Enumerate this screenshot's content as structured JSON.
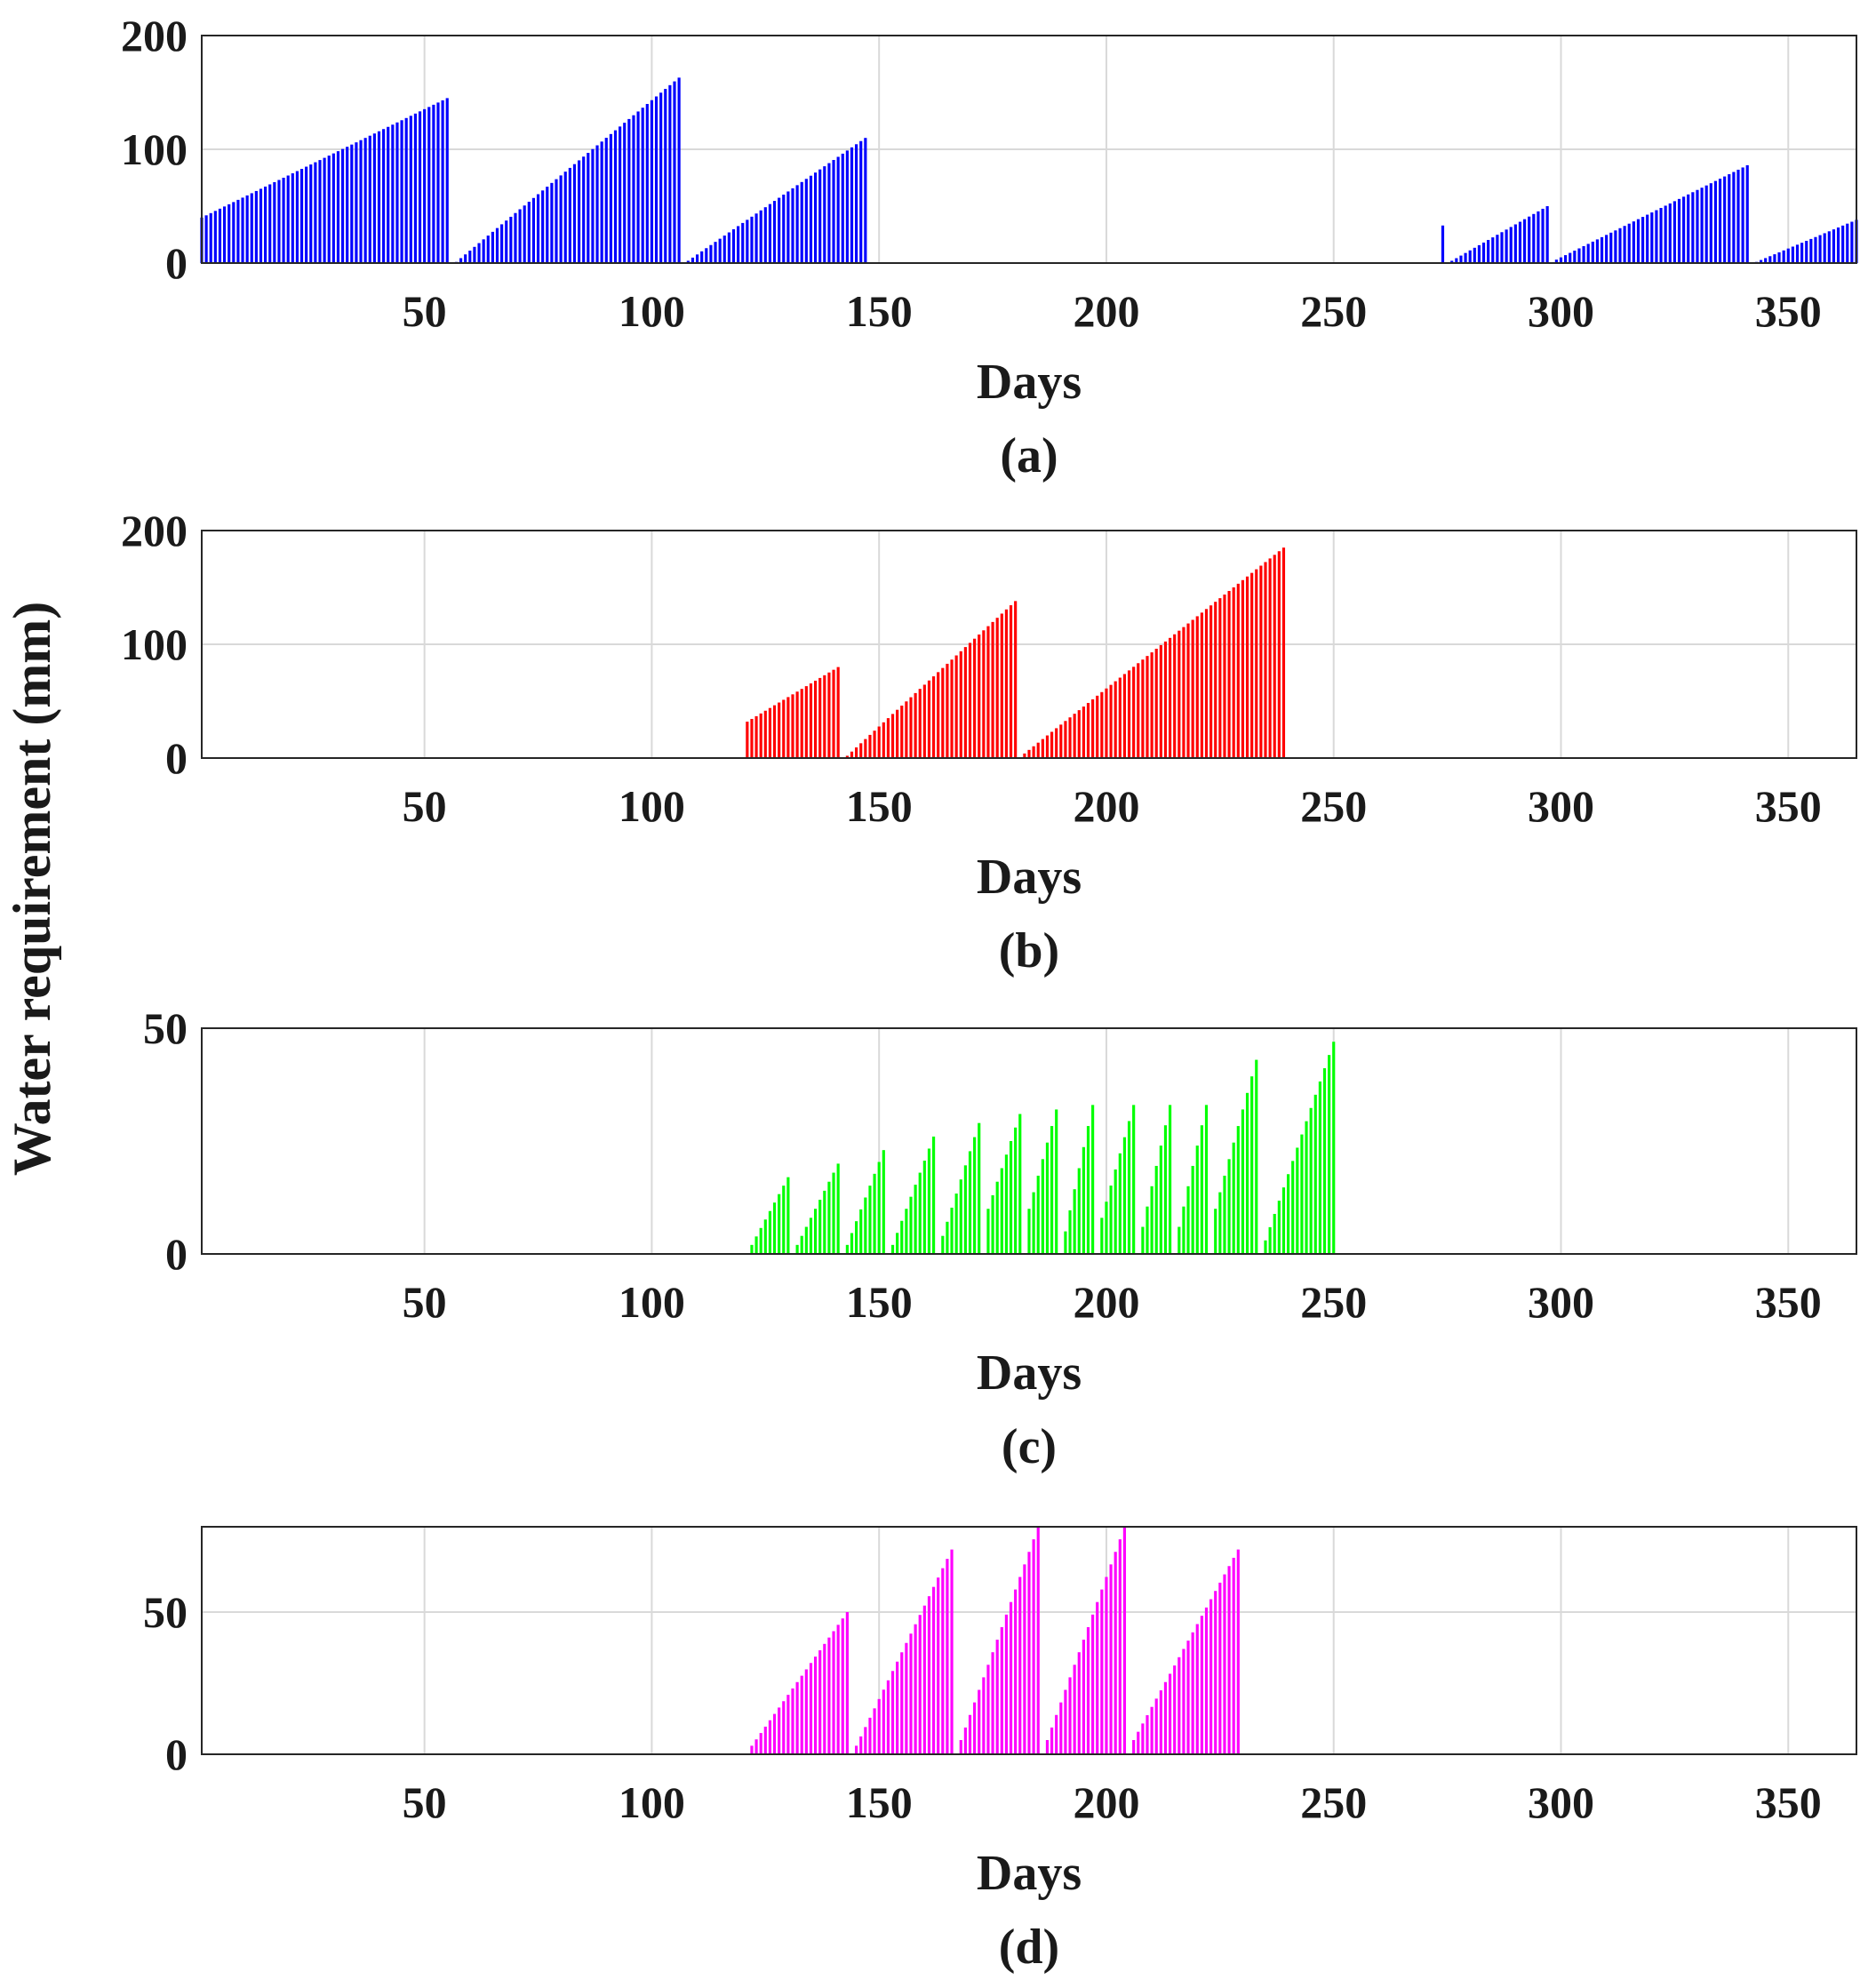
{
  "figure": {
    "shared_ylabel": "Water requirement (mm)",
    "colors": {
      "a": "#0000ff",
      "b": "#ff0000",
      "c": "#00ff00",
      "d": "#ff00ff",
      "grid": "#d9d9d9",
      "axis": "#262626",
      "text": "#1a1a1a"
    }
  },
  "chart_data": [
    {
      "type": "bar",
      "id": "a",
      "panel_label": "(a)",
      "xlabel": "Days",
      "xlim": [
        1,
        365
      ],
      "ylim": [
        0,
        200
      ],
      "xticks": [
        50,
        100,
        150,
        200,
        250,
        300,
        350
      ],
      "xtick_labels": [
        "50",
        "100",
        "150",
        "200",
        "250",
        "300",
        "350"
      ],
      "yticks": [
        0,
        100,
        200
      ],
      "ytick_labels": [
        "0",
        "100",
        "200"
      ],
      "grid": true,
      "color": "#0000ff",
      "segments": [
        {
          "start": 1,
          "end": 55,
          "from": 40,
          "to": 145
        },
        {
          "start": 57,
          "end": 106,
          "from": 1,
          "to": 163
        },
        {
          "start": 108,
          "end": 147,
          "from": 2,
          "to": 110
        },
        {
          "start": 274,
          "end": 274,
          "from": 33,
          "to": 33
        },
        {
          "start": 276,
          "end": 297,
          "from": 2,
          "to": 50
        },
        {
          "start": 299,
          "end": 341,
          "from": 3,
          "to": 86
        },
        {
          "start": 343,
          "end": 365,
          "from": 1,
          "to": 38
        }
      ]
    },
    {
      "type": "bar",
      "id": "b",
      "panel_label": "(b)",
      "xlabel": "Days",
      "xlim": [
        1,
        365
      ],
      "ylim": [
        0,
        200
      ],
      "xticks": [
        50,
        100,
        150,
        200,
        250,
        300,
        350
      ],
      "xtick_labels": [
        "50",
        "100",
        "150",
        "200",
        "250",
        "300",
        "350"
      ],
      "yticks": [
        0,
        100,
        200
      ],
      "ytick_labels": [
        "0",
        "100",
        "200"
      ],
      "grid": true,
      "color": "#ff0000",
      "segments": [
        {
          "start": 121,
          "end": 141,
          "from": 32,
          "to": 80
        },
        {
          "start": 143,
          "end": 180,
          "from": 2,
          "to": 138
        },
        {
          "start": 182,
          "end": 239,
          "from": 4,
          "to": 185
        }
      ]
    },
    {
      "type": "bar",
      "id": "c",
      "panel_label": "(c)",
      "xlabel": "Days",
      "xlim": [
        1,
        365
      ],
      "ylim": [
        0,
        50
      ],
      "xticks": [
        50,
        100,
        150,
        200,
        250,
        300,
        350
      ],
      "xtick_labels": [
        "50",
        "100",
        "150",
        "200",
        "250",
        "300",
        "350"
      ],
      "yticks": [
        0,
        50
      ],
      "ytick_labels": [
        "0",
        "50"
      ],
      "grid": true,
      "color": "#00ff00",
      "segments": [
        {
          "start": 122,
          "end": 130,
          "from": 2,
          "to": 17
        },
        {
          "start": 132,
          "end": 141,
          "from": 2,
          "to": 20
        },
        {
          "start": 143,
          "end": 151,
          "from": 2,
          "to": 23
        },
        {
          "start": 153,
          "end": 162,
          "from": 2,
          "to": 26
        },
        {
          "start": 164,
          "end": 172,
          "from": 4,
          "to": 29
        },
        {
          "start": 174,
          "end": 181,
          "from": 10,
          "to": 31
        },
        {
          "start": 183,
          "end": 189,
          "from": 10,
          "to": 32
        },
        {
          "start": 191,
          "end": 197,
          "from": 5,
          "to": 33
        },
        {
          "start": 199,
          "end": 206,
          "from": 8,
          "to": 33
        },
        {
          "start": 208,
          "end": 214,
          "from": 6,
          "to": 33
        },
        {
          "start": 216,
          "end": 222,
          "from": 6,
          "to": 33
        },
        {
          "start": 224,
          "end": 233,
          "from": 10,
          "to": 43
        },
        {
          "start": 235,
          "end": 250,
          "from": 3,
          "to": 47
        }
      ]
    },
    {
      "type": "bar",
      "id": "d",
      "panel_label": "(d)",
      "xlabel": "Days",
      "xlim": [
        1,
        365
      ],
      "ylim": [
        0,
        80
      ],
      "xticks": [
        50,
        100,
        150,
        200,
        250,
        300,
        350
      ],
      "xtick_labels": [
        "50",
        "100",
        "150",
        "200",
        "250",
        "300",
        "350"
      ],
      "yticks": [
        0,
        50
      ],
      "ytick_labels": [
        "0",
        "50"
      ],
      "grid": true,
      "color": "#ff00ff",
      "segments": [
        {
          "start": 122,
          "end": 143,
          "from": 3,
          "to": 50
        },
        {
          "start": 145,
          "end": 166,
          "from": 3,
          "to": 72
        },
        {
          "start": 168,
          "end": 185,
          "from": 5,
          "to": 80
        },
        {
          "start": 187,
          "end": 204,
          "from": 5,
          "to": 80
        },
        {
          "start": 206,
          "end": 229,
          "from": 5,
          "to": 72
        }
      ]
    }
  ]
}
